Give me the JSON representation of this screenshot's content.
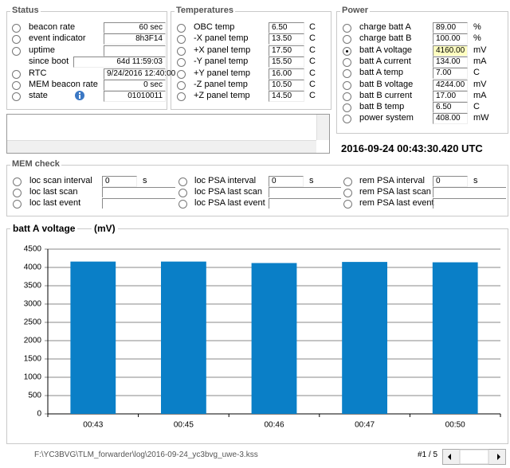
{
  "status": {
    "title": "Status",
    "rows": [
      {
        "label": "beacon rate",
        "value": "60 sec"
      },
      {
        "label": "event indicator",
        "value": "8h3F14"
      },
      {
        "label": "uptime"
      },
      {
        "label": "since boot",
        "value": "64d 11:59:03",
        "radio": false
      },
      {
        "label": "RTC",
        "value": "9/24/2016 12:40:00"
      },
      {
        "label": "MEM beacon rate",
        "value": "0 sec"
      },
      {
        "label": "state",
        "value": "01010011"
      }
    ]
  },
  "temperatures": {
    "title": "Temperatures",
    "rows": [
      {
        "label": "OBC temp",
        "value": "6.50",
        "unit": "C"
      },
      {
        "label": "-X panel temp",
        "value": "13.50",
        "unit": "C"
      },
      {
        "label": "+X panel temp",
        "value": "17.50",
        "unit": "C"
      },
      {
        "label": "-Y panel temp",
        "value": "15.50",
        "unit": "C"
      },
      {
        "label": "+Y panel temp",
        "value": "16.00",
        "unit": "C"
      },
      {
        "label": "-Z panel temp",
        "value": "10.50",
        "unit": "C"
      },
      {
        "label": "+Z panel temp",
        "value": "14.50",
        "unit": "C"
      }
    ]
  },
  "power": {
    "title": "Power",
    "selected": 2,
    "rows": [
      {
        "label": "charge batt A",
        "value": "89.00",
        "unit": "%"
      },
      {
        "label": "charge batt B",
        "value": "100.00",
        "unit": "%"
      },
      {
        "label": "batt A voltage",
        "value": "4160.00",
        "unit": "mV"
      },
      {
        "label": "batt A current",
        "value": "134.00",
        "unit": "mA"
      },
      {
        "label": "batt A temp",
        "value": "7.00",
        "unit": "C"
      },
      {
        "label": "batt B voltage",
        "value": "4244.00",
        "unit": "mV"
      },
      {
        "label": "batt B current",
        "value": "17.00",
        "unit": "mA"
      },
      {
        "label": "batt B temp",
        "value": "6.50",
        "unit": "C"
      },
      {
        "label": "power system",
        "value": "408.00",
        "unit": "mW"
      }
    ]
  },
  "timestamp": "2016-09-24 00:43:30.420 UTC",
  "mem_check": {
    "title": "MEM check",
    "columns": [
      {
        "rows": [
          {
            "label": "loc scan interval",
            "value": "0",
            "unit": "s"
          },
          {
            "label": "loc last scan"
          },
          {
            "label": "loc last event"
          }
        ]
      },
      {
        "rows": [
          {
            "label": "loc PSA interval",
            "value": "0",
            "unit": "s"
          },
          {
            "label": "loc PSA last scan"
          },
          {
            "label": "loc PSA last event"
          }
        ]
      },
      {
        "rows": [
          {
            "label": "rem PSA interval",
            "value": "0",
            "unit": "s"
          },
          {
            "label": "rem PSA last scan"
          },
          {
            "label": "rem PSA last event"
          }
        ]
      }
    ]
  },
  "chart_data": {
    "type": "bar",
    "title": "batt A voltage",
    "unit": "(mV)",
    "categories": [
      "00:43",
      "00:45",
      "00:46",
      "00:47",
      "00:50"
    ],
    "values": [
      4160,
      4160,
      4120,
      4150,
      4140
    ],
    "color": "#0a7fc7",
    "ylim": [
      0,
      4500
    ],
    "yticks": [
      0,
      500,
      1000,
      1500,
      2000,
      2500,
      3000,
      3500,
      4000,
      4500
    ],
    "grid": true
  },
  "footer": {
    "path": "F:\\YC3BVG\\TLM_forwarder\\log\\2016-09-24_yc3bvg_uwe-3.kss",
    "record": "#1 / 5"
  }
}
